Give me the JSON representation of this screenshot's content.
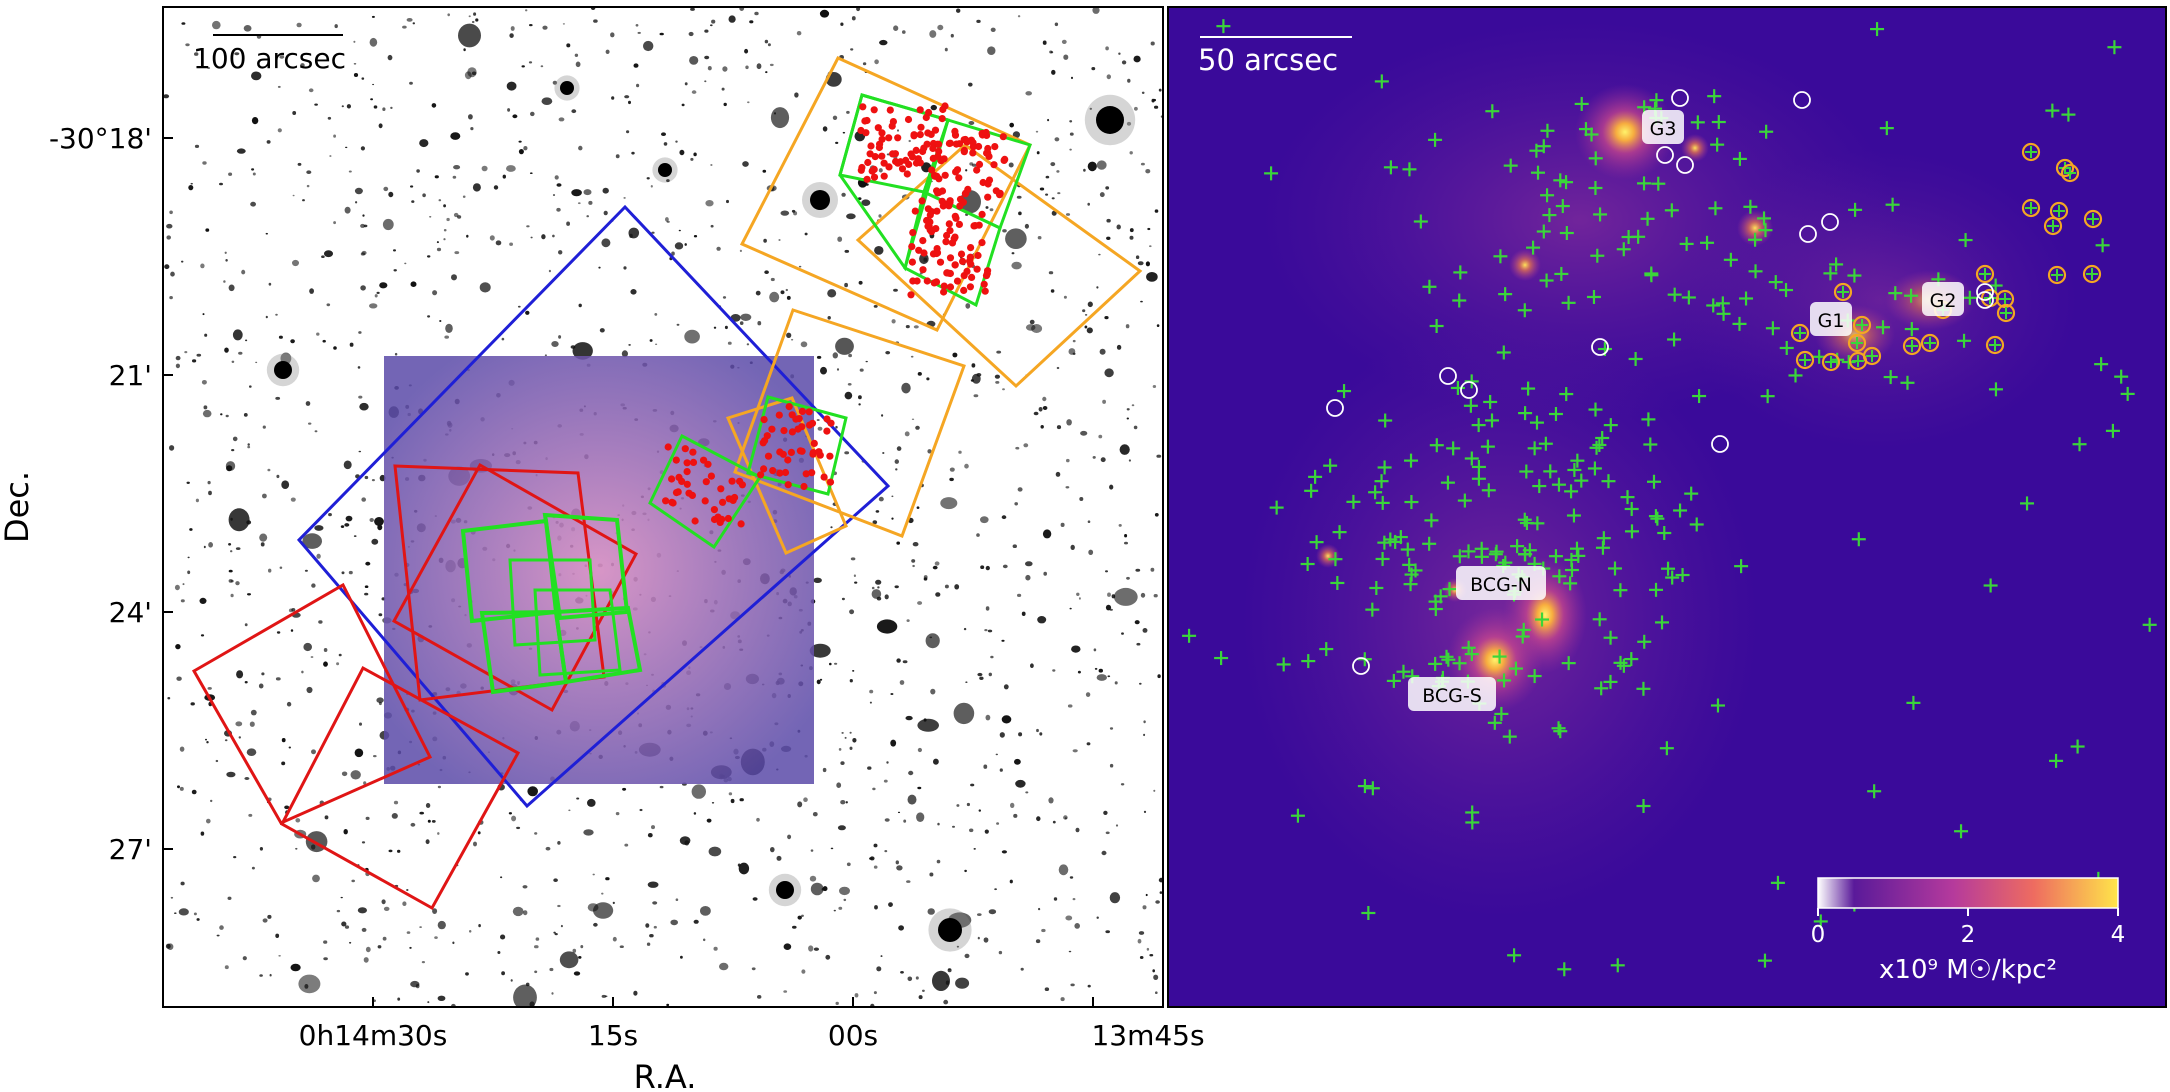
{
  "left_panel": {
    "scalebar_label": "100 arcsec",
    "ra_ticks": [
      "0h14m30s",
      "15s",
      "00s",
      "13m45s"
    ],
    "dec_ticks": [
      "-30°18'",
      "21'",
      "24'",
      "27'"
    ],
    "xlabel": "R.A.",
    "ylabel": "Dec."
  },
  "right_panel": {
    "scalebar_label": "50 arcsec",
    "labels": {
      "g3": "G3",
      "g1": "G1",
      "g2": "G2",
      "bcg_n": "BCG-N",
      "bcg_s": "BCG-S"
    },
    "colorbar": {
      "ticks": [
        "0",
        "2",
        "4"
      ],
      "label": "x10⁹ M☉/kpc²"
    }
  },
  "colors": {
    "blue_frame": "#1f1fd6",
    "red_frame": "#e01515",
    "orange_frame": "#f5a623",
    "green_frame": "#22e022",
    "red_points": "#ee1111",
    "cross": "#3ad63a",
    "map_bg": "#3a0a9a"
  }
}
